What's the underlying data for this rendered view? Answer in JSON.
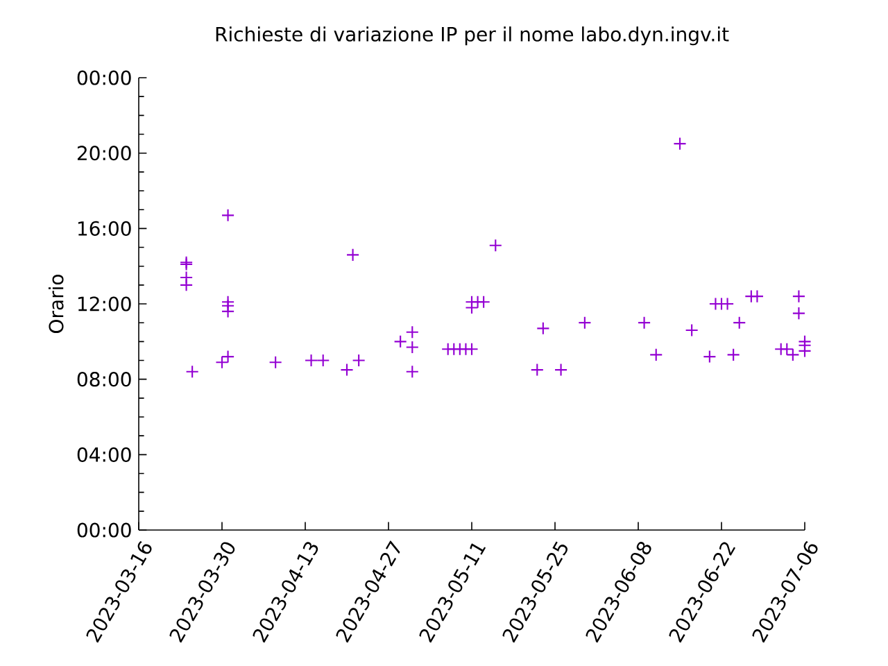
{
  "chart_data": {
    "type": "scatter",
    "title": "Richieste di variazione IP per il nome labo.dyn.ingv.it",
    "ylabel": "Orario",
    "marker": "cross",
    "grid": false,
    "x": [
      "2023-03-24",
      "2023-03-24",
      "2023-03-24",
      "2023-03-24",
      "2023-03-25",
      "2023-03-30",
      "2023-03-31",
      "2023-03-31",
      "2023-03-31",
      "2023-03-31",
      "2023-03-31",
      "2023-04-08",
      "2023-04-14",
      "2023-04-16",
      "2023-04-20",
      "2023-04-21",
      "2023-04-22",
      "2023-04-29",
      "2023-05-01",
      "2023-05-01",
      "2023-05-01",
      "2023-05-07",
      "2023-05-08",
      "2023-05-09",
      "2023-05-10",
      "2023-05-11",
      "2023-05-11",
      "2023-05-11",
      "2023-05-12",
      "2023-05-13",
      "2023-05-15",
      "2023-05-22",
      "2023-05-23",
      "2023-05-26",
      "2023-05-30",
      "2023-06-09",
      "2023-06-11",
      "2023-06-15",
      "2023-06-17",
      "2023-06-20",
      "2023-06-21",
      "2023-06-22",
      "2023-06-23",
      "2023-06-24",
      "2023-06-25",
      "2023-06-27",
      "2023-06-28",
      "2023-07-02",
      "2023-07-03",
      "2023-07-04",
      "2023-07-05",
      "2023-07-05",
      "2023-07-06",
      "2023-07-06",
      "2023-07-06"
    ],
    "series": [
      {
        "color": "#9400d3",
        "values": [
          14.2,
          14.1,
          13.4,
          13.0,
          8.4,
          8.9,
          16.7,
          12.1,
          11.9,
          11.6,
          9.2,
          8.9,
          9.0,
          9.0,
          8.5,
          14.6,
          9.0,
          10.0,
          10.5,
          9.7,
          8.4,
          9.6,
          9.6,
          9.6,
          9.6,
          9.6,
          12.1,
          11.8,
          12.1,
          12.1,
          15.1,
          8.5,
          10.7,
          8.5,
          11.0,
          11.0,
          9.3,
          20.5,
          10.6,
          9.2,
          12.0,
          12.0,
          12.0,
          9.3,
          11.0,
          12.4,
          12.4,
          9.6,
          9.6,
          9.3,
          12.4,
          11.5,
          10.0,
          9.8,
          9.5
        ]
      }
    ],
    "xlim": [
      "2023-03-16",
      "2023-07-06"
    ],
    "xticks": [
      "2023-03-16",
      "2023-03-30",
      "2023-04-13",
      "2023-04-27",
      "2023-05-11",
      "2023-05-25",
      "2023-06-08",
      "2023-06-22",
      "2023-07-06"
    ],
    "ylim": [
      0,
      24
    ],
    "yticks": [
      {
        "value": 0,
        "label": "00:00"
      },
      {
        "value": 4,
        "label": "04:00"
      },
      {
        "value": 8,
        "label": "08:00"
      },
      {
        "value": 12,
        "label": "12:00"
      },
      {
        "value": 16,
        "label": "16:00"
      },
      {
        "value": 20,
        "label": "20:00"
      },
      {
        "value": 24,
        "label": "00:00"
      }
    ]
  }
}
